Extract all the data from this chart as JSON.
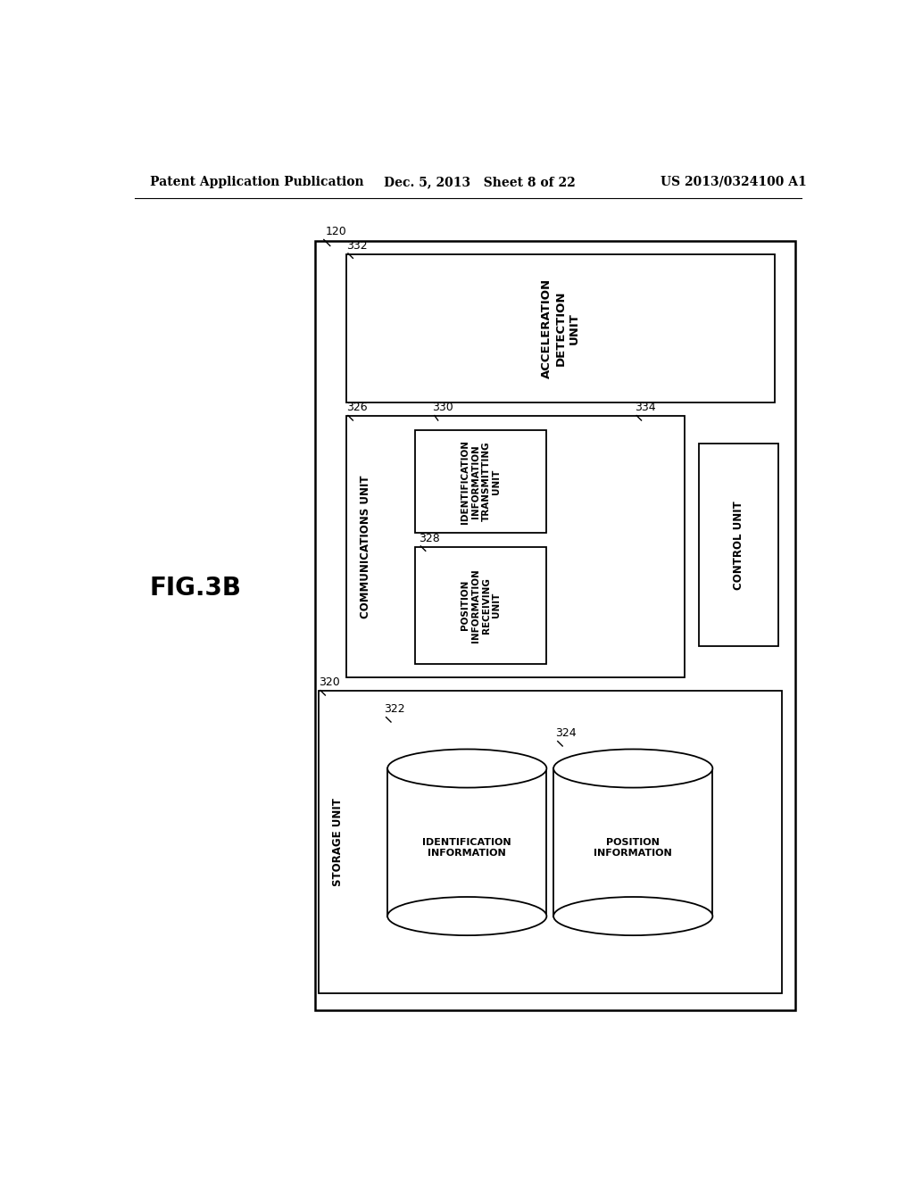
{
  "bg_color": "#ffffff",
  "header_left": "Patent Application Publication",
  "header_mid": "Dec. 5, 2013   Sheet 8 of 22",
  "header_right": "US 2013/0324100 A1",
  "fig_label": "FIG.3B"
}
